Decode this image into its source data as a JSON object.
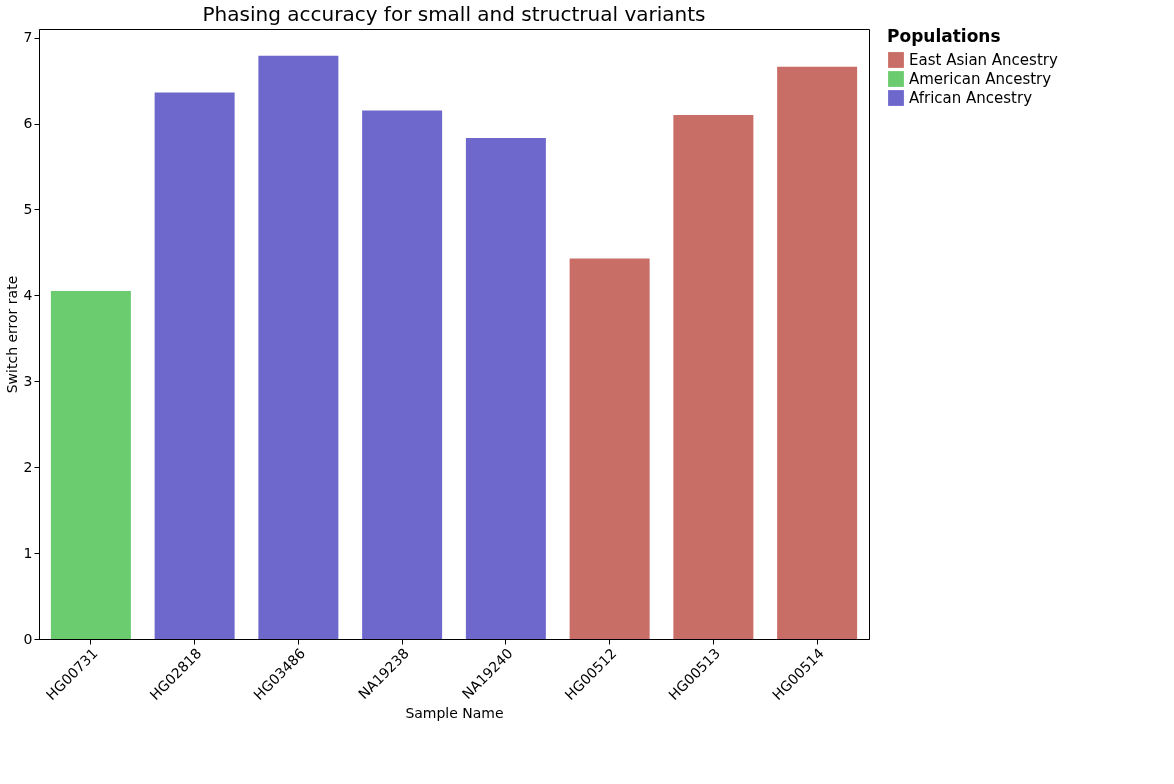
{
  "chart_data": {
    "type": "bar",
    "title": "Phasing accuracy for small and structrual variants",
    "xlabel": "Sample Name",
    "ylabel": "Switch error rate",
    "legend_title": "Populations",
    "categories": [
      "HG00731",
      "HG02818",
      "HG03486",
      "NA19238",
      "NA19240",
      "HG00512",
      "HG00513",
      "HG00514"
    ],
    "series": [
      {
        "name": "East Asian Ancestry",
        "color": "#c96e66",
        "values": [
          null,
          null,
          null,
          null,
          null,
          4.43,
          6.1,
          6.66
        ]
      },
      {
        "name": "American Ancestry",
        "color": "#6acc6e",
        "values": [
          4.05,
          null,
          null,
          null,
          null,
          null,
          null,
          null
        ]
      },
      {
        "name": "African Ancestry",
        "color": "#6f68cc",
        "values": [
          null,
          6.36,
          6.79,
          6.15,
          5.83,
          null,
          null,
          null
        ]
      }
    ],
    "ylim": [
      0,
      7.1
    ],
    "yticks": [
      0,
      1,
      2,
      3,
      4,
      5,
      6,
      7
    ],
    "grid": false,
    "legend": "right"
  }
}
